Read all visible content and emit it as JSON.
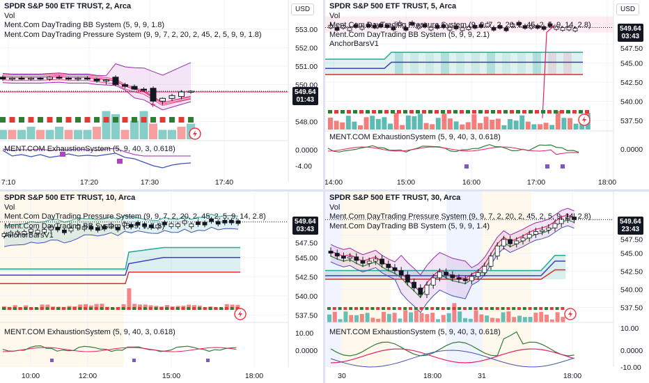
{
  "chart_data": [
    {
      "type": "candlestick",
      "title": "SPDR S&P 500 ETF TRUST, 2, Arca",
      "legend": [
        "Vol",
        "Ment.Com DayTrading BB System (5, 9, 9, 1.8)",
        "Ment.Com DayTrading Pressure System (9, 9, 7, 2, 20, 2, 45, 2, 5, 9, 9, 1.8)"
      ],
      "currency": "USD",
      "y_ticks": [
        "553.00",
        "552.00",
        "551.00",
        "550.00",
        "548.00"
      ],
      "ylim": [
        547.6,
        553.6
      ],
      "last_price": "549.64",
      "countdown": "01:43",
      "x_ticks": [
        "7:10",
        "17:20",
        "17:30",
        "17:40"
      ],
      "candles": [
        [
          550.4,
          550.5,
          550.2,
          550.3
        ],
        [
          550.3,
          550.4,
          550.2,
          550.35
        ],
        [
          550.35,
          550.45,
          550.25,
          550.3
        ],
        [
          550.3,
          550.4,
          550.2,
          550.35
        ],
        [
          550.35,
          550.4,
          550.25,
          550.3
        ],
        [
          550.3,
          550.45,
          550.2,
          550.4
        ],
        [
          550.4,
          550.5,
          550.3,
          550.35
        ],
        [
          550.35,
          550.4,
          550.25,
          550.3
        ],
        [
          550.3,
          550.4,
          550.2,
          550.35
        ],
        [
          550.35,
          550.45,
          550.25,
          550.3
        ],
        [
          550.3,
          550.35,
          550.1,
          550.2
        ],
        [
          550.2,
          550.3,
          550.0,
          550.25
        ],
        [
          550.4,
          550.5,
          549.9,
          550.0
        ],
        [
          550.0,
          550.1,
          549.8,
          549.9
        ],
        [
          549.9,
          550.0,
          549.7,
          549.75
        ],
        [
          549.75,
          549.85,
          549.6,
          549.7
        ],
        [
          549.8,
          549.9,
          549.0,
          549.1
        ],
        [
          549.1,
          549.3,
          548.9,
          549.25
        ],
        [
          549.25,
          549.5,
          549.1,
          549.4
        ],
        [
          549.35,
          549.7,
          549.2,
          549.6
        ],
        [
          549.6,
          549.7,
          549.5,
          549.64
        ]
      ],
      "volume": [
        0.3,
        0.3,
        0.3,
        0.4,
        0.3,
        0.3,
        0.4,
        0.3,
        0.3,
        0.3,
        0.4,
        0.9,
        0.8,
        0.3,
        0.6,
        0.9,
        0.5,
        0.3,
        0.3,
        0.4,
        0.5
      ],
      "indicator": {
        "title": "MENT.COM ExhaustionSystem (5, 9, 40, 3, 0.618)",
        "y_ticks": [
          "0.0000",
          "-4.00"
        ]
      }
    },
    {
      "type": "candlestick",
      "title": "SPDR S&P 500 ETF TRUST, 5, Arca",
      "legend": [
        "Vol",
        "Ment.Com DayTrading Pressure System (9, 9, 7, 2, 20, 2, 45, 2, 5, 9, 14, 2.8)",
        "Ment.Com DayTrading BB System (5, 9, 9, 2.1)",
        "AnchorBarsV1"
      ],
      "currency": "USD",
      "y_ticks": [
        "547.50",
        "545.00",
        "542.50",
        "540.00",
        "537.50"
      ],
      "ylim": [
        536.4,
        551.6
      ],
      "last_price": "549.64",
      "countdown": "03:43",
      "x_ticks": [
        "14:00",
        "15:00",
        "16:00",
        "17:00",
        "18:00"
      ],
      "anchor_bands": {
        "top": 546.4,
        "mid": 545.1,
        "bottom": 543.5,
        "pre_top": 545.5,
        "pre_mid": 544.3,
        "pre_bottom": 543.5
      },
      "indicator": {
        "title": "MENT.COM ExhaustionSystem (5, 9, 40, 3, 0.618)",
        "y_ticks": [
          "0.0000"
        ]
      }
    },
    {
      "type": "candlestick",
      "title": "SPDR S&P 500 ETF TRUST, 10, Arca",
      "legend": [
        "Vol",
        "Ment.Com DayTrading Pressure System (9, 9, 7, 2, 20, 2, 45, 2, 5, 9, 14, 2.8)",
        "Ment.Com DayTrading BB System (5, 9, 9, 1.8)",
        "AnchorBarsV1"
      ],
      "currency": "USD",
      "y_ticks": [
        "547.50",
        "545.00",
        "542.50",
        "540.00",
        "537.50"
      ],
      "ylim": [
        536.8,
        551.8
      ],
      "last_price": "549.64",
      "countdown": "03:43",
      "x_ticks": [
        "10:00",
        "12:00",
        "15:00",
        "18:00"
      ],
      "indicator": {
        "title": "MENT.COM ExhaustionSystem (5, 9, 40, 3, 0.618)",
        "y_ticks": [
          "10.00",
          "0.0000"
        ]
      }
    },
    {
      "type": "candlestick",
      "title": "SPDR S&P 500 ETF TRUST, 30, Arca",
      "legend": [
        "Vol",
        "Ment.Com DayTrading Pressure System (9, 9, 7, 2, 20, 2, 45, 2, 5, 9, 14, 2.8)",
        "Ment.Com DayTrading BB System (5, 9, 9, 1.4)"
      ],
      "currency": "USD",
      "y_ticks": [
        "547.50",
        "545.00",
        "542.50",
        "540.00",
        "537.50"
      ],
      "ylim": [
        536.4,
        551.6
      ],
      "last_price": "549.64",
      "countdown": "23:43",
      "x_ticks": [
        "30",
        "18:00",
        "31",
        "18:00"
      ],
      "closes": [
        545.0,
        544.6,
        544.3,
        544.5,
        544.0,
        543.6,
        543.9,
        544.2,
        543.5,
        543.0,
        542.6,
        542.0,
        541.0,
        540.2,
        539.3,
        540.6,
        541.6,
        542.4,
        542.0,
        541.6,
        541.4,
        541.2,
        541.8,
        542.3,
        543.2,
        544.6,
        546.0,
        546.9,
        546.3,
        546.7,
        547.1,
        547.6,
        548.0,
        548.2,
        548.5,
        549.1,
        549.7,
        550.0,
        549.64
      ],
      "indicator": {
        "title": "MENT.COM ExhaustionSystem (5, 9, 40, 3, 0.618)",
        "y_ticks": [
          "10.00",
          "0.0000",
          "-10.00"
        ]
      }
    }
  ],
  "colors": {
    "up": "#26a69a",
    "down": "#ef5350",
    "accent_red": "#e91e63",
    "anchor_blue": "#3f3fbf",
    "purple": "#9c27b0"
  }
}
